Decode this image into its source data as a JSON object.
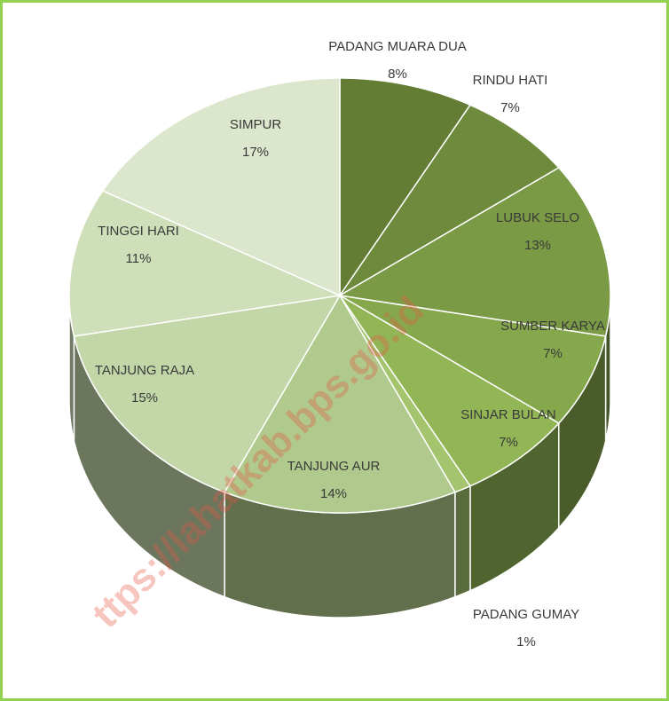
{
  "chart_data": {
    "type": "pie",
    "categories": [
      "PADANG MUARA DUA",
      "RINDU HATI",
      "LUBUK SELO",
      "SUMBER KARYA",
      "SINJAR BULAN",
      "PADANG GUMAY",
      "TANJUNG AUR",
      "TANJUNG RAJA",
      "TINGGI HARI",
      "SIMPUR"
    ],
    "values": [
      8,
      7,
      13,
      7,
      7,
      1,
      14,
      15,
      11,
      17
    ],
    "value_labels": [
      "8%",
      "7%",
      "13%",
      "7%",
      "7%",
      "1%",
      "14%",
      "15%",
      "11%",
      "17%"
    ],
    "colors": [
      "#647d35",
      "#6e8a3c",
      "#7a9a45",
      "#86a84c",
      "#92b556",
      "#a4c46e",
      "#b0c98c",
      "#c3d6a8",
      "#cfdfba",
      "#dbe6cc"
    ],
    "watermark": "ttps://lahatkab.bps.go.id"
  }
}
